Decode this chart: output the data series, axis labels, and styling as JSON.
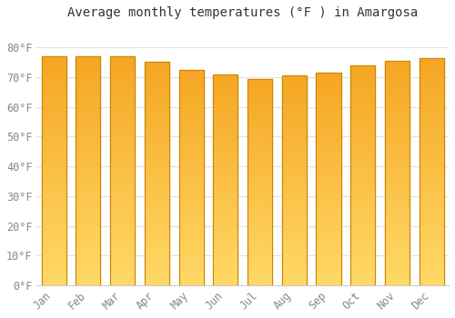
{
  "months": [
    "Jan",
    "Feb",
    "Mar",
    "Apr",
    "May",
    "Jun",
    "Jul",
    "Aug",
    "Sep",
    "Oct",
    "Nov",
    "Dec"
  ],
  "values": [
    77.0,
    77.0,
    77.0,
    75.2,
    72.5,
    71.0,
    69.5,
    70.5,
    71.5,
    74.0,
    75.5,
    76.5
  ],
  "title": "Average monthly temperatures (°F ) in Amargosa",
  "ylim": [
    0,
    88
  ],
  "yticks": [
    0,
    10,
    20,
    30,
    40,
    50,
    60,
    70,
    80
  ],
  "ytick_labels": [
    "0°F",
    "10°F",
    "20°F",
    "30°F",
    "40°F",
    "50°F",
    "60°F",
    "70°F",
    "80°F"
  ],
  "bar_color_top": "#F5A623",
  "bar_color_bottom": "#FFD966",
  "bar_edge_color": "#C8860A",
  "background_color": "#FFFFFF",
  "grid_color": "#E0E0E0",
  "title_fontsize": 10,
  "tick_fontsize": 8.5,
  "bar_width": 0.72
}
